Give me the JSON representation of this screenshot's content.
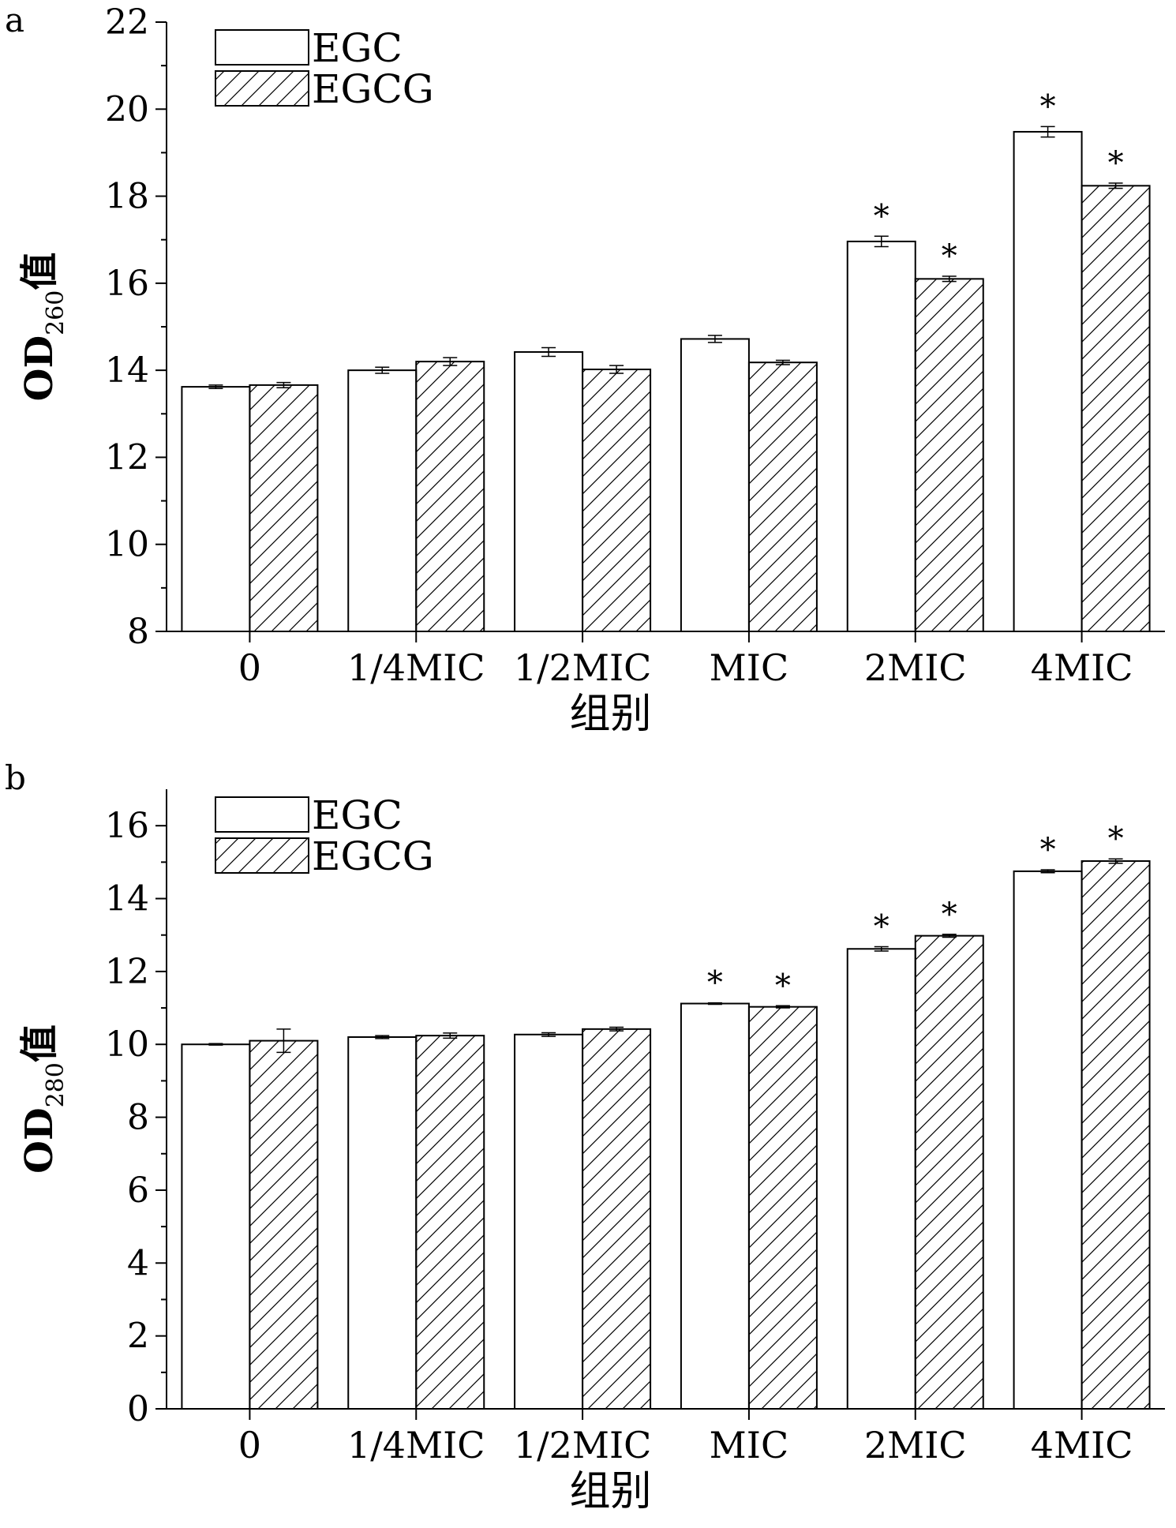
{
  "colors": {
    "ink": "#000000",
    "background": "#ffffff",
    "hatch": "#000000"
  },
  "chart_data": [
    {
      "type": "bar",
      "panel_label": "a",
      "xlabel": "组别",
      "ylabel_main": "OD",
      "ylabel_sub": "260",
      "ylabel_suffix": "值",
      "ylim": [
        8,
        22
      ],
      "yticks": [
        8,
        10,
        12,
        14,
        16,
        18,
        20,
        22
      ],
      "grid": false,
      "legend_position": "top-left",
      "categories": [
        "0",
        "1/4MIC",
        "1/2MIC",
        "MIC",
        "2MIC",
        "4MIC"
      ],
      "series": [
        {
          "name": "EGC",
          "fill": "white",
          "values": [
            13.62,
            14.0,
            14.42,
            14.72,
            16.96,
            19.48
          ],
          "errors": [
            0.04,
            0.07,
            0.1,
            0.08,
            0.12,
            0.12
          ],
          "significance": [
            "",
            "",
            "",
            "",
            "*",
            "*"
          ]
        },
        {
          "name": "EGCG",
          "fill": "hatch",
          "values": [
            13.66,
            14.2,
            14.02,
            14.18,
            16.1,
            18.24
          ],
          "errors": [
            0.06,
            0.09,
            0.09,
            0.05,
            0.06,
            0.06
          ],
          "significance": [
            "",
            "",
            "",
            "",
            "*",
            "*"
          ]
        }
      ]
    },
    {
      "type": "bar",
      "panel_label": "b",
      "xlabel": "组别",
      "ylabel_main": "OD",
      "ylabel_sub": "280",
      "ylabel_suffix": "值",
      "ylim": [
        0,
        17
      ],
      "yticks": [
        0,
        2,
        4,
        6,
        8,
        10,
        12,
        14,
        16
      ],
      "grid": false,
      "legend_position": "top-left",
      "categories": [
        "0",
        "1/4MIC",
        "1/2MIC",
        "MIC",
        "2MIC",
        "4MIC"
      ],
      "series": [
        {
          "name": "EGC",
          "fill": "white",
          "values": [
            10.0,
            10.2,
            10.27,
            11.12,
            12.62,
            14.75
          ],
          "errors": [
            0.02,
            0.04,
            0.05,
            0.02,
            0.06,
            0.04
          ],
          "significance": [
            "",
            "",
            "",
            "*",
            "*",
            "*"
          ]
        },
        {
          "name": "EGCG",
          "fill": "hatch",
          "values": [
            10.1,
            10.24,
            10.42,
            11.03,
            12.98,
            15.03
          ],
          "errors": [
            0.32,
            0.07,
            0.05,
            0.03,
            0.04,
            0.06
          ],
          "significance": [
            "",
            "",
            "",
            "*",
            "*",
            "*"
          ]
        }
      ]
    }
  ]
}
